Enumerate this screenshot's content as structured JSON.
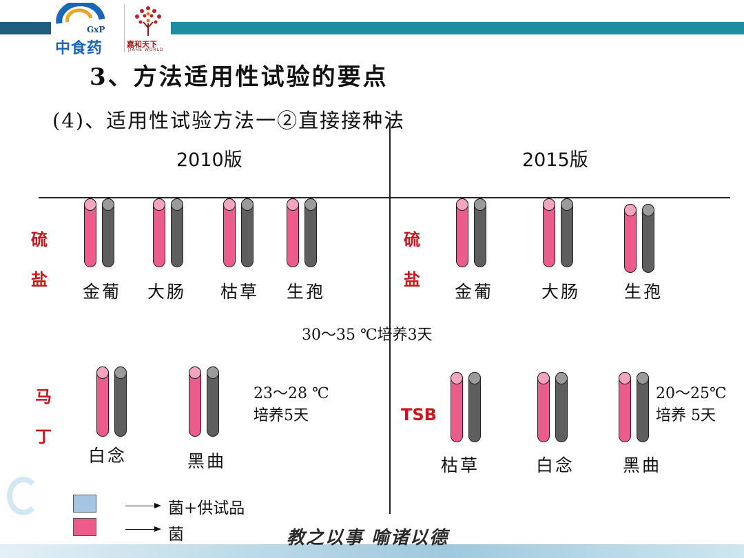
{
  "logo": {
    "brand_cn": "中食药",
    "brand_gxp": "GxP",
    "partner_cn": "嘉和天下",
    "partner_en": "JIAHE WORLD",
    "accent": "#1d8ea0"
  },
  "title": "3、方法适用性试验的要点",
  "subtitle": "(4)、适用性试验方法一②直接接种法",
  "columns": {
    "left": "2010版",
    "right": "2015版"
  },
  "sections": {
    "top_left_label": [
      "硫",
      "盐"
    ],
    "top_right_label": [
      "硫",
      "盐"
    ],
    "bottom_left_label": [
      "马",
      "丁"
    ],
    "bottom_right_label": "TSB"
  },
  "organisms": {
    "top_left": [
      "金葡",
      "大肠",
      "枯草",
      "生孢"
    ],
    "top_right": [
      "金葡",
      "大肠",
      "生孢"
    ],
    "bottom_left": [
      "白念",
      "黑曲"
    ],
    "bottom_right": [
      "枯草",
      "白念",
      "黑曲"
    ]
  },
  "conditions": {
    "middle": "30～35 ℃培养3天",
    "bottom_left": [
      "23～28 ℃",
      "培养5天"
    ],
    "bottom_right": [
      "20～25℃",
      "培养  5天"
    ]
  },
  "legend": [
    {
      "color": "#a6c5e4",
      "icon": "light-blue-square",
      "text": "菌+供试品"
    },
    {
      "color": "#ec5c8a",
      "icon": "pink-square",
      "text": "菌"
    }
  ],
  "tube_colors": {
    "sample": "#ec5c8a",
    "control": "#5e5e5e"
  },
  "motto": "教之以事  喻诸以德"
}
